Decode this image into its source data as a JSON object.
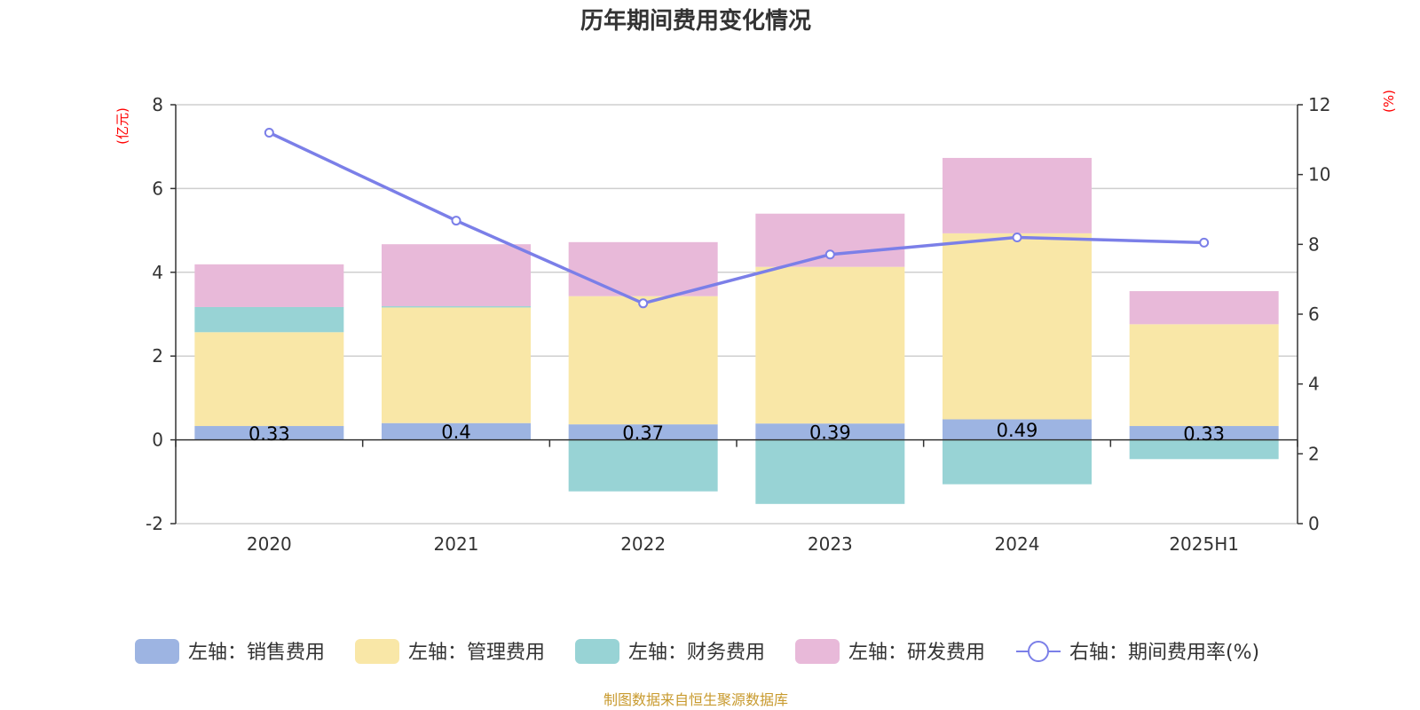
{
  "chart_data": {
    "type": "bar",
    "title": "历年期间费用变化情况",
    "categories": [
      "2020",
      "2021",
      "2022",
      "2023",
      "2024",
      "2025H1"
    ],
    "left_axis": {
      "unit": "(亿元)",
      "ylim": [
        -2,
        8
      ],
      "ticks": [
        "-2",
        "0",
        "2",
        "4",
        "6",
        "8"
      ]
    },
    "right_axis": {
      "unit": "(%)",
      "ylim": [
        0,
        12
      ],
      "ticks": [
        "0",
        "2",
        "4",
        "6",
        "8",
        "10",
        "12"
      ]
    },
    "series": [
      {
        "name": "左轴：销售费用",
        "color": "#9db4e2",
        "values": [
          0.33,
          0.4,
          0.37,
          0.39,
          0.49,
          0.33
        ],
        "labels": [
          "0.33",
          "0.4",
          "0.37",
          "0.39",
          "0.49",
          "0.33"
        ]
      },
      {
        "name": "左轴：管理费用",
        "color": "#f9e7a7",
        "values": [
          2.24,
          2.76,
          3.06,
          3.74,
          4.44,
          2.43
        ]
      },
      {
        "name": "左轴：财务费用",
        "color": "#98d3d5",
        "values": [
          0.6,
          0.03,
          -1.23,
          -1.53,
          -1.06,
          -0.46
        ]
      },
      {
        "name": "左轴：研发费用",
        "color": "#e8b9d9",
        "values": [
          1.02,
          1.48,
          1.29,
          1.27,
          1.8,
          0.79
        ]
      },
      {
        "name": "右轴：期间费用率(%)",
        "color": "#7b7fe8",
        "type": "line",
        "axis": "right",
        "values": [
          11.2,
          8.68,
          6.31,
          7.71,
          8.2,
          8.05
        ]
      }
    ],
    "grid": true,
    "legend": "bottom"
  },
  "source_text": "制图数据来自恒生聚源数据库"
}
